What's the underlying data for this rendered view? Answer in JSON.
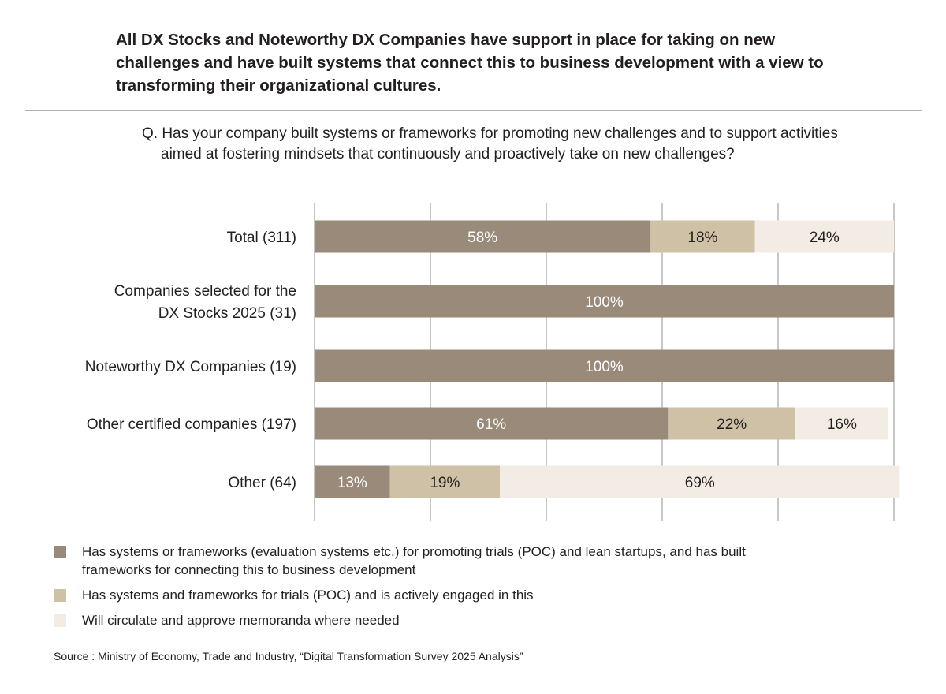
{
  "headline": "All DX Stocks and Noteworthy DX Companies have support in place for taking on new challenges and have built systems that connect this to business development with a view to transforming their organizational cultures.",
  "question": "Q. Has your company built systems or frameworks for promoting new challenges and to support activities aimed at fostering mindsets that continuously and proactively take on new challenges?",
  "colors": {
    "has_frameworks": "#9a8a79",
    "trials_poc": "#cfc1a6",
    "memoranda": "#f3ece5",
    "gridline": "#a8a29b"
  },
  "chart_data": {
    "type": "bar",
    "orientation": "horizontal",
    "stacked": true,
    "xlim": [
      0,
      100
    ],
    "grid": true,
    "legend_position": "bottom",
    "categories": [
      [
        "Total (311)"
      ],
      [
        "Companies selected for the",
        "DX Stocks 2025 (31)"
      ],
      [
        "Noteworthy DX Companies (19)"
      ],
      [
        "Other certified companies (197)"
      ],
      [
        "Other (64)"
      ]
    ],
    "series": [
      {
        "name": "Has systems or frameworks (evaluation systems etc.) for promoting trials (POC) and lean startups, and has built frameworks for connecting this to business development",
        "color": "#9a8a79",
        "label_color": "#ffffff",
        "values": [
          58,
          100,
          100,
          61,
          13
        ]
      },
      {
        "name": "Has systems and frameworks for trials (POC) and is actively engaged in this",
        "color": "#cfc1a6",
        "label_color": "#231f20",
        "values": [
          18,
          0,
          0,
          22,
          19
        ]
      },
      {
        "name": "Will circulate and approve memoranda where needed",
        "color": "#f3ece5",
        "label_color": "#231f20",
        "values": [
          24,
          0,
          0,
          16,
          69
        ]
      }
    ]
  },
  "legend": {
    "items": [
      "Has systems or frameworks (evaluation systems etc.) for promoting trials (POC) and lean startups, and has built frameworks for connecting this to business development",
      "Has systems and frameworks for trials (POC) and is actively engaged in this",
      "Will circulate and approve memoranda where needed"
    ]
  },
  "source": "Source : Ministry of Economy, Trade and Industry, “Digital Transformation Survey 2025 Analysis”"
}
